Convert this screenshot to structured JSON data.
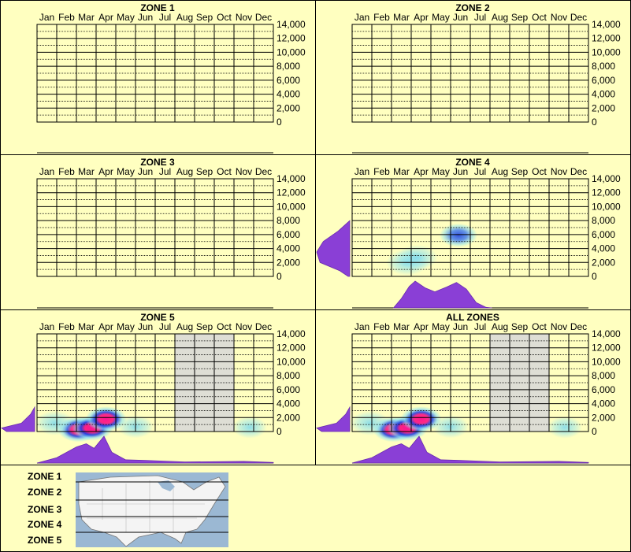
{
  "months": [
    "Jan",
    "Feb",
    "Mar",
    "Apr",
    "May",
    "Jun",
    "Jul",
    "Aug",
    "Sep",
    "Oct",
    "Nov",
    "Dec"
  ],
  "y_ticks": [
    14000,
    12000,
    10000,
    8000,
    6000,
    4000,
    2000,
    0
  ],
  "y_tick_labels": [
    "14,000",
    "12,000",
    "10,000",
    "8,000",
    "6,000",
    "4,000",
    "2,000",
    "0"
  ],
  "colors": {
    "background": "#ffffc0",
    "grid": "#000000",
    "density": "#8a3fd6",
    "heat_low": "#8fe3f0",
    "heat_mid": "#2040e0",
    "heat_high": "#ff1493",
    "shade": "#d8d8d8"
  },
  "chart_data": [
    {
      "type": "heatmap",
      "title": "ZONE 1",
      "x_categories": [
        "Jan",
        "Feb",
        "Mar",
        "Apr",
        "May",
        "Jun",
        "Jul",
        "Aug",
        "Sep",
        "Oct",
        "Nov",
        "Dec"
      ],
      "ylim": [
        0,
        14000
      ],
      "hotspots": [],
      "month_density": [],
      "elevation_density": [],
      "shaded_months": []
    },
    {
      "type": "heatmap",
      "title": "ZONE 2",
      "x_categories": [
        "Jan",
        "Feb",
        "Mar",
        "Apr",
        "May",
        "Jun",
        "Jul",
        "Aug",
        "Sep",
        "Oct",
        "Nov",
        "Dec"
      ],
      "ylim": [
        0,
        14000
      ],
      "hotspots": [],
      "month_density": [],
      "elevation_density": [],
      "shaded_months": []
    },
    {
      "type": "heatmap",
      "title": "ZONE 3",
      "x_categories": [
        "Jan",
        "Feb",
        "Mar",
        "Apr",
        "May",
        "Jun",
        "Jul",
        "Aug",
        "Sep",
        "Oct",
        "Nov",
        "Dec"
      ],
      "ylim": [
        0,
        14000
      ],
      "hotspots": [],
      "month_density": [],
      "elevation_density": [],
      "shaded_months": []
    },
    {
      "type": "heatmap",
      "title": "ZONE 4",
      "x_categories": [
        "Jan",
        "Feb",
        "Mar",
        "Apr",
        "May",
        "Jun",
        "Jul",
        "Aug",
        "Sep",
        "Oct",
        "Nov",
        "Dec"
      ],
      "ylim": [
        0,
        14000
      ],
      "hotspots": [
        {
          "month": 3.3,
          "elevation": 2000,
          "intensity": 0.45
        },
        {
          "month": 3.8,
          "elevation": 2700,
          "intensity": 0.4
        },
        {
          "month": 5.9,
          "elevation": 5900,
          "intensity": 0.5
        }
      ],
      "month_density": [
        [
          2.6,
          0
        ],
        [
          3.0,
          0.35
        ],
        [
          3.4,
          0.8
        ],
        [
          3.7,
          1.0
        ],
        [
          4.2,
          0.75
        ],
        [
          4.7,
          0.6
        ],
        [
          5.3,
          0.78
        ],
        [
          5.8,
          0.95
        ],
        [
          6.3,
          0.7
        ],
        [
          6.8,
          0.2
        ],
        [
          7.3,
          0.02
        ],
        [
          7.6,
          0
        ]
      ],
      "elevation_density": [
        [
          0,
          0.05
        ],
        [
          800,
          0.3
        ],
        [
          2000,
          0.9
        ],
        [
          3500,
          1.0
        ],
        [
          5000,
          0.8
        ],
        [
          6500,
          0.35
        ],
        [
          8000,
          0
        ]
      ],
      "shaded_months": []
    },
    {
      "type": "heatmap",
      "title": "ZONE 5",
      "x_categories": [
        "Jan",
        "Feb",
        "Mar",
        "Apr",
        "May",
        "Jun",
        "Jul",
        "Aug",
        "Sep",
        "Oct",
        "Nov",
        "Dec"
      ],
      "ylim": [
        0,
        14000
      ],
      "hotspots": [
        {
          "month": 2.6,
          "elevation": 300,
          "intensity": 1.0
        },
        {
          "month": 3.3,
          "elevation": 500,
          "intensity": 0.9
        },
        {
          "month": 4.0,
          "elevation": 1800,
          "intensity": 0.85
        },
        {
          "month": 1.4,
          "elevation": 1200,
          "intensity": 0.35
        },
        {
          "month": 5.5,
          "elevation": 700,
          "intensity": 0.25
        },
        {
          "month": 11.3,
          "elevation": 600,
          "intensity": 0.2
        }
      ],
      "month_density": [
        [
          0.5,
          0
        ],
        [
          1.5,
          0.2
        ],
        [
          2.5,
          0.6
        ],
        [
          3.0,
          0.72
        ],
        [
          3.4,
          0.55
        ],
        [
          3.9,
          1.0
        ],
        [
          4.3,
          0.4
        ],
        [
          5.0,
          0.12
        ],
        [
          6.0,
          0.1
        ],
        [
          8.0,
          0.04
        ],
        [
          11.0,
          0.06
        ],
        [
          12.5,
          0.02
        ]
      ],
      "elevation_density": [
        [
          0,
          0.85
        ],
        [
          500,
          1.0
        ],
        [
          1200,
          0.4
        ],
        [
          2500,
          0.12
        ],
        [
          3500,
          0
        ]
      ],
      "shaded_months": [
        8,
        9,
        10
      ]
    },
    {
      "type": "heatmap",
      "title": "ALL ZONES",
      "x_categories": [
        "Jan",
        "Feb",
        "Mar",
        "Apr",
        "May",
        "Jun",
        "Jul",
        "Aug",
        "Sep",
        "Oct",
        "Nov",
        "Dec"
      ],
      "ylim": [
        0,
        14000
      ],
      "hotspots": [
        {
          "month": 2.6,
          "elevation": 300,
          "intensity": 1.0
        },
        {
          "month": 3.3,
          "elevation": 500,
          "intensity": 0.9
        },
        {
          "month": 4.0,
          "elevation": 1800,
          "intensity": 0.85
        },
        {
          "month": 1.4,
          "elevation": 1200,
          "intensity": 0.35
        },
        {
          "month": 5.5,
          "elevation": 700,
          "intensity": 0.25
        },
        {
          "month": 11.3,
          "elevation": 600,
          "intensity": 0.2
        }
      ],
      "month_density": [
        [
          0.5,
          0
        ],
        [
          1.5,
          0.2
        ],
        [
          2.5,
          0.6
        ],
        [
          3.0,
          0.72
        ],
        [
          3.4,
          0.55
        ],
        [
          3.9,
          1.0
        ],
        [
          4.3,
          0.4
        ],
        [
          5.0,
          0.12
        ],
        [
          6.0,
          0.1
        ],
        [
          8.0,
          0.04
        ],
        [
          11.0,
          0.06
        ],
        [
          12.5,
          0.02
        ]
      ],
      "elevation_density": [
        [
          0,
          0.85
        ],
        [
          500,
          1.0
        ],
        [
          1200,
          0.4
        ],
        [
          2500,
          0.12
        ],
        [
          3500,
          0
        ]
      ],
      "shaded_months": [
        8,
        9,
        10
      ]
    }
  ],
  "legend": {
    "zones": [
      "ZONE 1",
      "ZONE 2",
      "ZONE 3",
      "ZONE 4",
      "ZONE 5"
    ],
    "map_icon": "us-map-icon"
  }
}
